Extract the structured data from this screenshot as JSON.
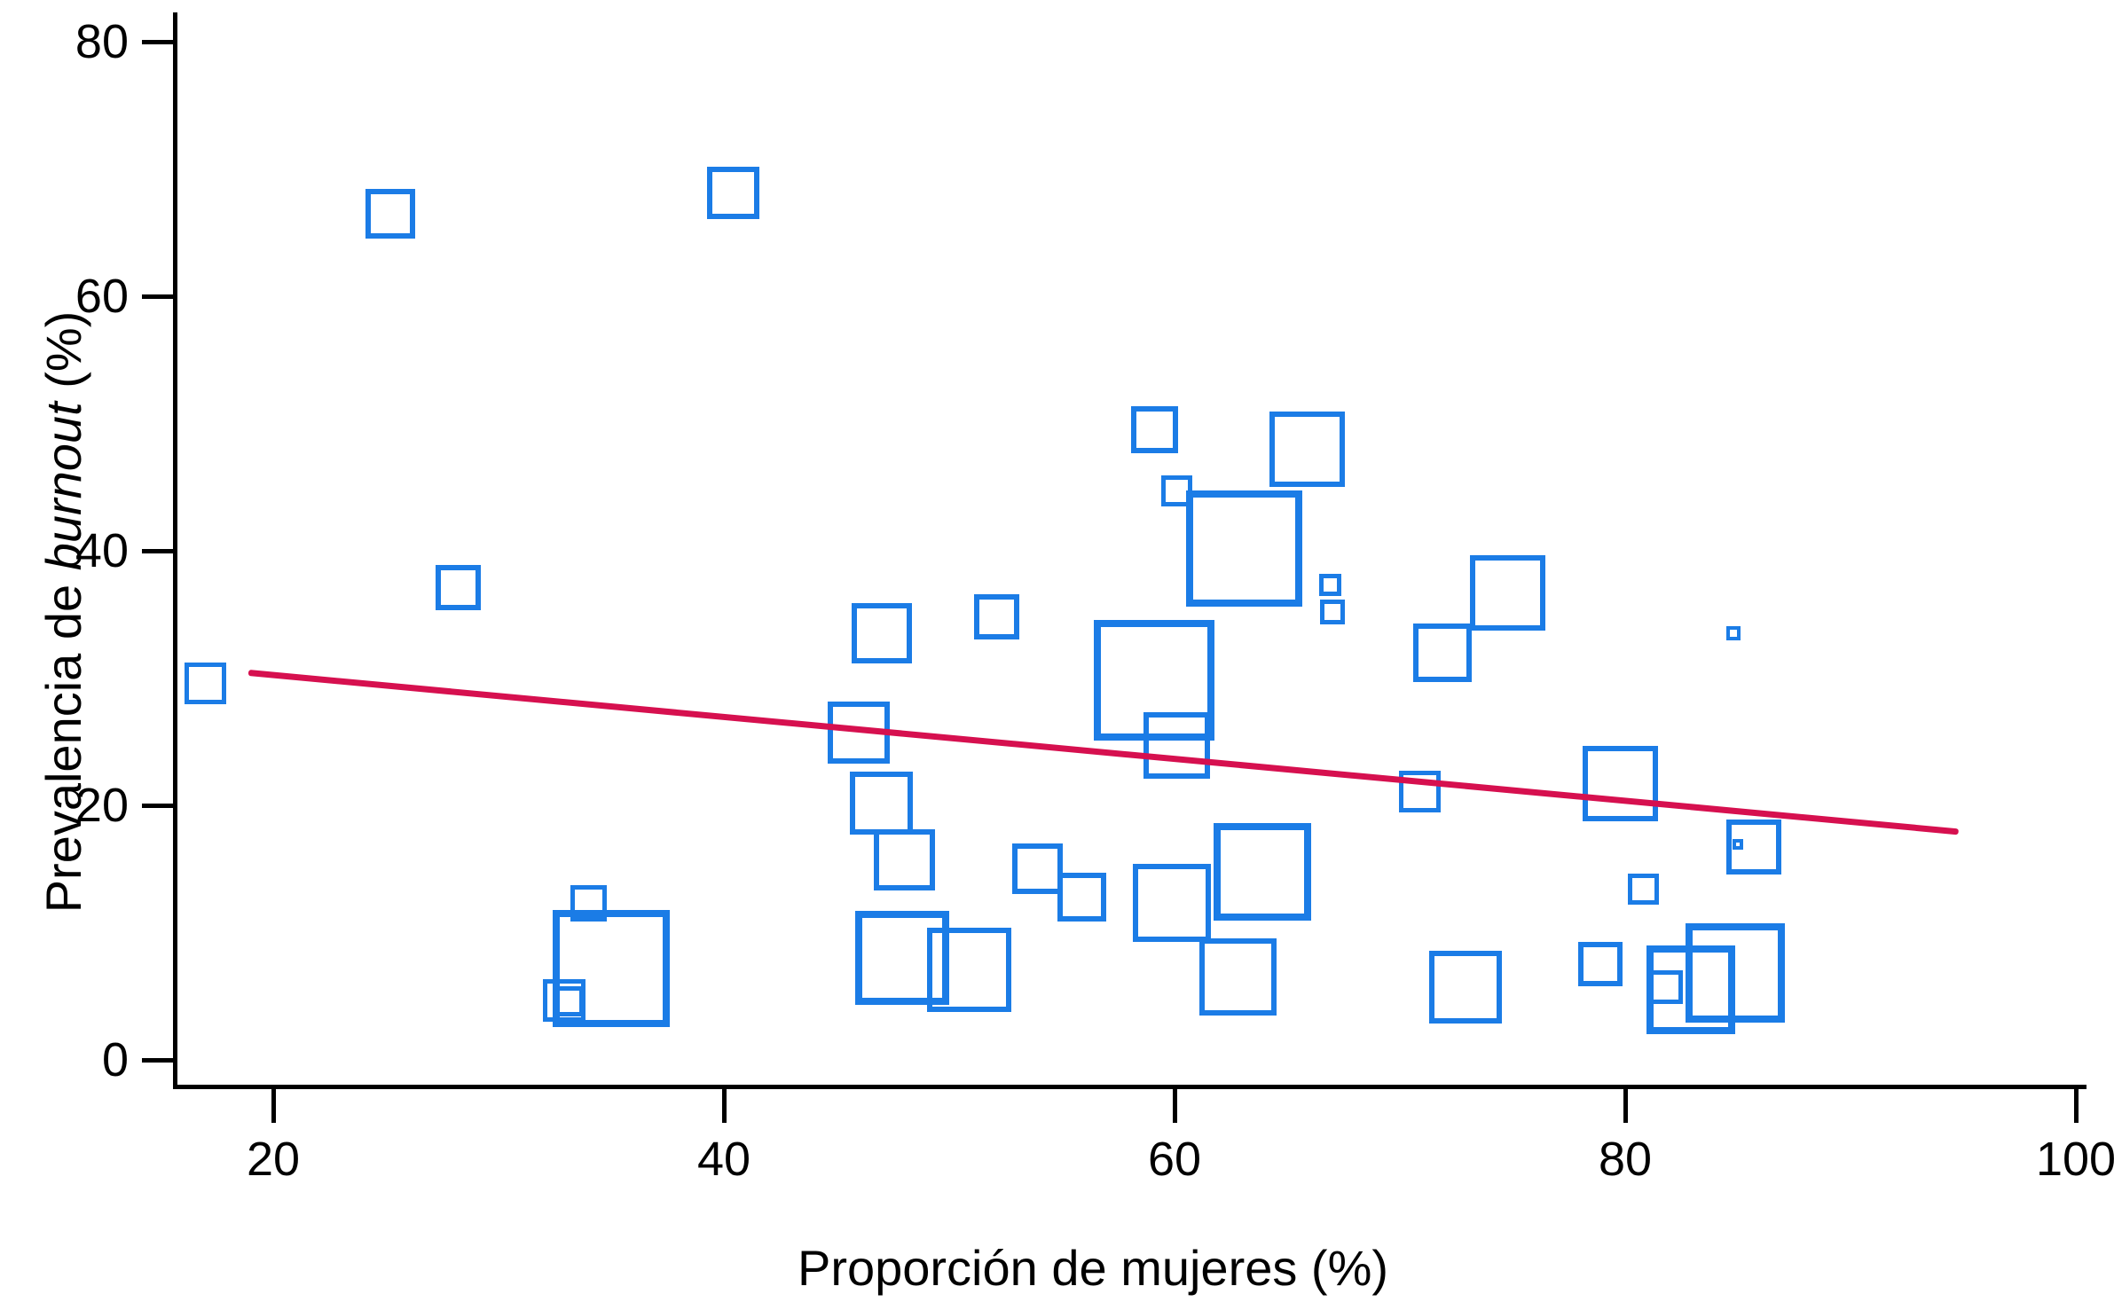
{
  "figure": {
    "background": "#ffffff",
    "marker_color": "#1B7CE6",
    "trend_color": "#D6104F",
    "axis_color": "#000000",
    "xlabel": "Proporción de mujeres (%)",
    "ylabel_prefix": "Prevalencia de ",
    "ylabel_italic": "burnout",
    "ylabel_suffix": " (%)"
  },
  "chart_data": {
    "type": "scatter",
    "title": "",
    "xlabel": "Proporción de mujeres (%)",
    "ylabel": "Prevalencia de burnout (%)",
    "marker_shape": "open-square",
    "marker_note": "square size proportional to study weight (pixel side length s)",
    "grid": false,
    "legend": null,
    "xlim": [
      15.7,
      100.5
    ],
    "ylim": [
      -2.3,
      82.3
    ],
    "x_ticks": [
      20,
      40,
      60,
      80,
      100
    ],
    "y_ticks": [
      0,
      20,
      40,
      60,
      80
    ],
    "points": [
      {
        "x": 25.2,
        "y": 66.5,
        "s": 56
      },
      {
        "x": 40.4,
        "y": 68.1,
        "s": 59
      },
      {
        "x": 28.2,
        "y": 37.1,
        "s": 51
      },
      {
        "x": 17.0,
        "y": 29.6,
        "s": 47
      },
      {
        "x": 59.1,
        "y": 49.5,
        "s": 53
      },
      {
        "x": 60.1,
        "y": 44.7,
        "s": 35
      },
      {
        "x": 63.1,
        "y": 40.2,
        "s": 131
      },
      {
        "x": 65.9,
        "y": 48.0,
        "s": 85
      },
      {
        "x": 66.9,
        "y": 37.3,
        "s": 25
      },
      {
        "x": 67.0,
        "y": 35.2,
        "s": 28
      },
      {
        "x": 71.9,
        "y": 32.0,
        "s": 66
      },
      {
        "x": 74.8,
        "y": 36.7,
        "s": 85
      },
      {
        "x": 47.0,
        "y": 33.5,
        "s": 68
      },
      {
        "x": 52.1,
        "y": 34.8,
        "s": 51
      },
      {
        "x": 59.1,
        "y": 29.8,
        "s": 136
      },
      {
        "x": 60.1,
        "y": 24.7,
        "s": 75
      },
      {
        "x": 46.0,
        "y": 25.7,
        "s": 70
      },
      {
        "x": 47.0,
        "y": 20.2,
        "s": 71
      },
      {
        "x": 70.9,
        "y": 21.1,
        "s": 47
      },
      {
        "x": 79.8,
        "y": 21.7,
        "s": 85
      },
      {
        "x": 84.8,
        "y": 33.5,
        "s": 16
      },
      {
        "x": 85.7,
        "y": 16.7,
        "s": 62
      },
      {
        "x": 85.0,
        "y": 16.9,
        "s": 12
      },
      {
        "x": 80.8,
        "y": 13.4,
        "s": 35
      },
      {
        "x": 78.9,
        "y": 7.5,
        "s": 50
      },
      {
        "x": 72.9,
        "y": 5.7,
        "s": 82
      },
      {
        "x": 84.9,
        "y": 6.8,
        "s": 112
      },
      {
        "x": 82.9,
        "y": 5.5,
        "s": 100
      },
      {
        "x": 81.8,
        "y": 5.7,
        "s": 38
      },
      {
        "x": 48.0,
        "y": 15.7,
        "s": 69
      },
      {
        "x": 53.9,
        "y": 15.0,
        "s": 57
      },
      {
        "x": 55.9,
        "y": 12.8,
        "s": 55
      },
      {
        "x": 47.9,
        "y": 8.0,
        "s": 106
      },
      {
        "x": 50.9,
        "y": 7.1,
        "s": 95
      },
      {
        "x": 59.9,
        "y": 12.3,
        "s": 88
      },
      {
        "x": 63.9,
        "y": 14.8,
        "s": 110
      },
      {
        "x": 62.8,
        "y": 6.5,
        "s": 87
      },
      {
        "x": 35.0,
        "y": 7.2,
        "s": 132
      },
      {
        "x": 34.0,
        "y": 12.3,
        "s": 41
      },
      {
        "x": 32.9,
        "y": 4.7,
        "s": 48
      },
      {
        "x": 33.1,
        "y": 4.6,
        "s": 34
      }
    ],
    "trend_line": {
      "x1": 18.9,
      "y1": 30.4,
      "x2": 94.8,
      "y2": 17.9
    }
  }
}
